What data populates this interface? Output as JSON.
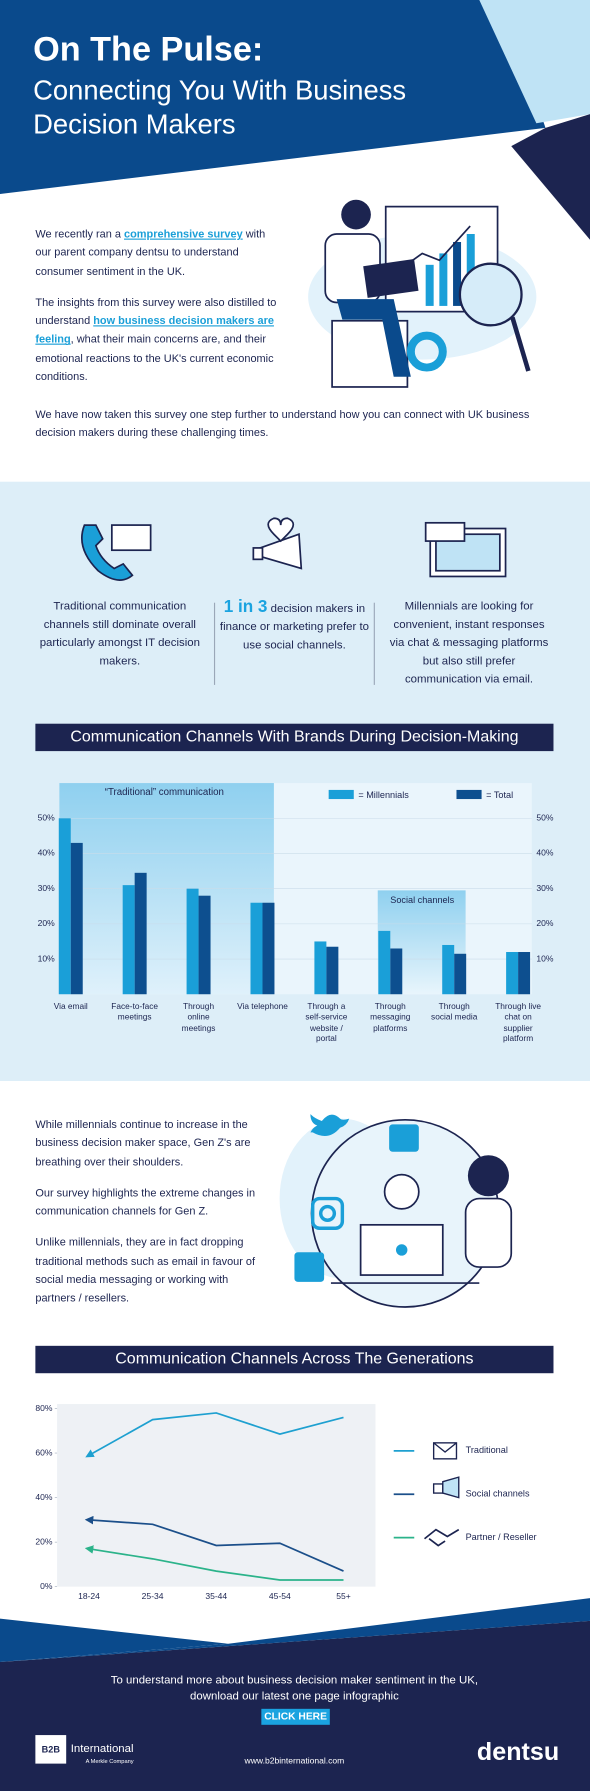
{
  "header": {
    "title": "On The Pulse:",
    "subtitle": "Connecting You With Business Decision Makers"
  },
  "intro": {
    "p1": {
      "before": "We recently ran a",
      "link": "comprehensive survey",
      "after": "with our parent company dentsu to understand consumer sentiment in the UK."
    },
    "p2": {
      "before": "The insights from this survey were also distilled to understand",
      "link": "how business decision makers are feeling",
      "after": ", what their main concerns are, and their emotional reactions to the UK's current economic conditions."
    },
    "p3": "We have now taken this survey one step further to understand how you can connect with UK business decision makers during these challenging times."
  },
  "stats": [
    {
      "text": "Traditional communication channels still dominate overall particularly amongst IT decision makers."
    },
    {
      "highlight": "1 in 3",
      "text": "decision makers in finance or marketing prefer to use social channels."
    },
    {
      "text": "Millennials are looking for convenient, instant responses via chat & messaging platforms  but also still prefer communication via email."
    }
  ],
  "chart_data": [
    {
      "type": "bar",
      "title": "Communication Channels With Brands During Decision-Making",
      "categories": [
        "Via email",
        "Face-to-face meetings",
        "Through online meetings",
        "Via telephone",
        "Through a self-service website / portal",
        "Through messaging platforms",
        "Through social media",
        "Through live chat on supplier platform"
      ],
      "series": [
        {
          "name": "= Millennials",
          "color": "#1a9fd8",
          "values": [
            50,
            31,
            30,
            26,
            15,
            18,
            14,
            12
          ]
        },
        {
          "name": "= Total",
          "color": "#0d4f8f",
          "values": [
            43,
            34.5,
            28,
            26,
            13.5,
            13,
            11.5,
            12
          ]
        }
      ],
      "ylim": [
        0,
        60
      ],
      "yticks": [
        {
          "value": 10,
          "label": "10%"
        },
        {
          "value": 20,
          "label": "20%"
        },
        {
          "value": 30,
          "label": "30%"
        },
        {
          "value": 40,
          "label": "40%"
        },
        {
          "value": 50,
          "label": "50%"
        }
      ],
      "annotations": [
        "“Traditional” communication",
        "Social channels"
      ],
      "legend": "top-right"
    },
    {
      "type": "line",
      "title": "Communication Channels Across The Generations",
      "categories": [
        "18-24",
        "25-34",
        "35-44",
        "45-54",
        "55+"
      ],
      "series": [
        {
          "name": "Traditional",
          "color": "#1ea0d0",
          "values": [
            59,
            75,
            78,
            68.5,
            76
          ]
        },
        {
          "name": "Social channels",
          "color": "#1b4f8a",
          "values": [
            30,
            28,
            18.5,
            19.5,
            7
          ]
        },
        {
          "name": "Partner / Reseller",
          "color": "#2bb38a",
          "values": [
            17,
            12.5,
            7,
            3,
            3
          ]
        }
      ],
      "ylim": [
        0,
        82
      ],
      "yticks": [
        {
          "value": 0,
          "label": "0%"
        },
        {
          "value": 20,
          "label": "20%"
        },
        {
          "value": 40,
          "label": "40%"
        },
        {
          "value": 60,
          "label": "60%"
        },
        {
          "value": 80,
          "label": "80%"
        }
      ],
      "legend": "right"
    }
  ],
  "genz": {
    "paragraphs": [
      "While millennials continue to increase in the business decision maker space, Gen Z's are breathing over their shoulders.",
      "Our survey highlights the extreme changes in communication channels for Gen Z.",
      "Unlike millennials, they are in fact dropping traditional methods such as  email in favour of social media messaging or working with partners / resellers."
    ]
  },
  "cta": {
    "text": "To understand more about business decision maker sentiment in the UK, download our latest one page infographic",
    "button": "CLICK HERE"
  },
  "footer": {
    "logo": "B2B",
    "company": "International",
    "tagline": "A Merkle Company",
    "url": "www.b2binternational.com",
    "brand": "dentsu"
  }
}
